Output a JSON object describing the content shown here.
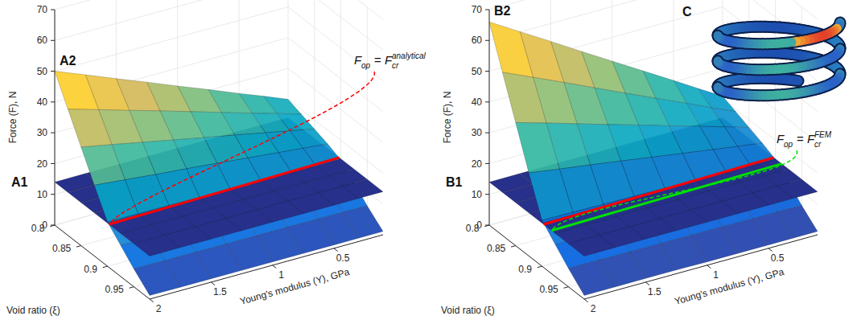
{
  "chart_data": [
    {
      "type": "surface",
      "xlabel": "Young's modulus (Y), GPa",
      "ylabel": "Void ratio (ξ)",
      "zlabel": "Force (F), N",
      "x": [
        0.1,
        0.3,
        0.5,
        0.75,
        1,
        1.25,
        1.5,
        1.75,
        2
      ],
      "y": [
        0.8,
        0.825,
        0.85,
        0.875,
        0.9,
        0.925,
        0.95,
        0.98
      ],
      "xlim": [
        0.1,
        2
      ],
      "xticks": [
        0.5,
        1,
        1.5,
        2
      ],
      "ylim": [
        0.8,
        0.98
      ],
      "yticks": [
        0.8,
        0.85,
        0.9,
        0.95
      ],
      "zlim": [
        0,
        70
      ],
      "zticks": [
        0,
        10,
        20,
        30,
        40,
        50,
        60,
        70
      ],
      "grid": true,
      "surfaces": [
        {
          "label": "A1",
          "type": "plane",
          "value": 14,
          "color": "#27308a"
        },
        {
          "label": "A2",
          "type": "surface",
          "values": [
            [
              20,
              23.2,
              26.3,
              30.3,
              34.2,
              38.2,
              42.1,
              46.1,
              50
            ],
            [
              18.5,
              20.9,
              23.2,
              26.2,
              29.2,
              32.2,
              35.1,
              38.1,
              41
            ],
            [
              17,
              18.6,
              20.2,
              22.2,
              24.1,
              26.1,
              28.1,
              30.1,
              32
            ],
            [
              15.5,
              16.3,
              17.1,
              18.1,
              19.1,
              20.1,
              21,
              22,
              23
            ],
            [
              13.6,
              13.7,
              13.8,
              13.9,
              14,
              14.1,
              14.2,
              14.3,
              14.4
            ],
            [
              9.5,
              9.6,
              9.7,
              9.7,
              9.8,
              9.9,
              9.9,
              10,
              10.1
            ],
            [
              5.4,
              5.5,
              5.5,
              5.6,
              5.6,
              5.6,
              5.7,
              5.7,
              5.8
            ],
            [
              1.1,
              1.1,
              1.1,
              1.1,
              1.1,
              1.1,
              1.1,
              1.1,
              1.2
            ]
          ]
        }
      ],
      "lines": [
        {
          "color": "#ff0000",
          "x": [
            0.1,
            2
          ],
          "y": [
            0.897,
            0.903
          ],
          "z": [
            14,
            14
          ],
          "annotation": {
            "symbol": "F",
            "lhs_sub": "op",
            "relation": "=",
            "rhs_sub": "cr",
            "rhs_sup": "analytical"
          }
        }
      ]
    },
    {
      "type": "surface",
      "xlabel": "Young's modulus (Y), GPa",
      "ylabel": "Void ratio (ξ)",
      "zlabel": "Force (F), N",
      "x": [
        0.1,
        0.3,
        0.5,
        0.75,
        1,
        1.25,
        1.5,
        1.75,
        2
      ],
      "y": [
        0.8,
        0.825,
        0.85,
        0.875,
        0.9,
        0.925,
        0.95,
        0.98
      ],
      "xlim": [
        0.1,
        2
      ],
      "xticks": [
        0.5,
        1,
        1.5,
        2
      ],
      "ylim": [
        0.8,
        0.98
      ],
      "yticks": [
        0.8,
        0.85,
        0.9,
        0.95
      ],
      "zlim": [
        0,
        70
      ],
      "zticks": [
        0,
        10,
        20,
        30,
        40,
        50,
        60,
        70
      ],
      "grid": true,
      "inset_label": "C",
      "surfaces": [
        {
          "label": "B1",
          "type": "plane",
          "value": 14,
          "color": "#27308a"
        },
        {
          "label": "B2",
          "type": "surface",
          "values": [
            [
              21,
              25.7,
              30.5,
              36.4,
              42.3,
              48.2,
              54.2,
              60.1,
              66
            ],
            [
              19.3,
              22.8,
              26.4,
              30.8,
              35.2,
              39.7,
              44.2,
              48.6,
              53
            ],
            [
              17.5,
              19.9,
              22.3,
              25.2,
              28.2,
              31.1,
              34.1,
              37.1,
              40
            ],
            [
              15.8,
              16.9,
              18.1,
              19.6,
              21.1,
              22.6,
              24.1,
              25.5,
              27
            ],
            [
              13.8,
              13.9,
              14,
              14.2,
              14.3,
              14.5,
              14.6,
              14.8,
              14.9
            ],
            [
              9.7,
              9.7,
              9.8,
              9.9,
              10,
              10.2,
              10.2,
              10.4,
              10.4
            ],
            [
              5.5,
              5.6,
              5.6,
              5.7,
              5.7,
              5.8,
              5.8,
              5.9,
              6
            ],
            [
              1.1,
              1.1,
              1.1,
              1.1,
              1.1,
              1.2,
              1.2,
              1.2,
              1.2
            ]
          ]
        }
      ],
      "lines": [
        {
          "color": "#ff0000",
          "x": [
            0.1,
            2
          ],
          "y": [
            0.897,
            0.903
          ],
          "z": [
            14,
            14
          ]
        },
        {
          "color": "#00e000",
          "x": [
            0.1,
            2
          ],
          "y": [
            0.912,
            0.918
          ],
          "z": [
            14,
            14
          ],
          "annotation": {
            "symbol": "F",
            "lhs_sub": "op",
            "relation": "=",
            "rhs_sub": "cr",
            "rhs_sup": "FEM"
          }
        }
      ]
    }
  ]
}
